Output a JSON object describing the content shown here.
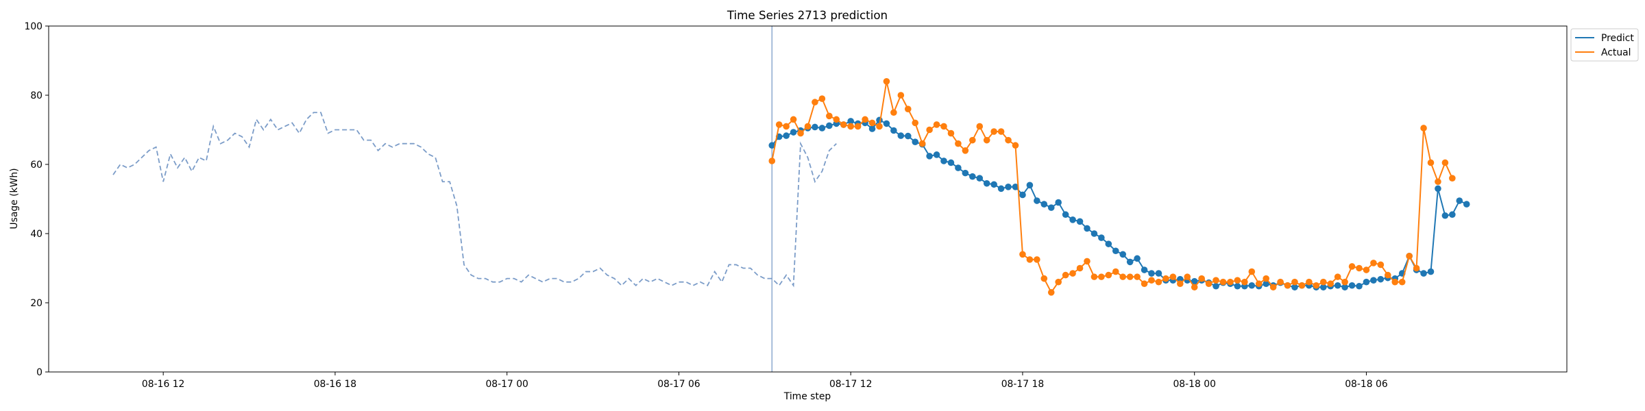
{
  "chart_data": {
    "type": "line",
    "title": "Time Series 2713 prediction",
    "xlabel": "Time step",
    "ylabel": "Usage (kWh)",
    "ylim": [
      0,
      100
    ],
    "yticks": [
      0,
      20,
      40,
      60,
      80,
      100
    ],
    "xlim": [
      "2024-08-16 08:00",
      "2024-08-18 13:00"
    ],
    "xticks": [
      {
        "t": "2024-08-16 12:00",
        "label": "08-16 12"
      },
      {
        "t": "2024-08-16 18:00",
        "label": "08-16 18"
      },
      {
        "t": "2024-08-17 00:00",
        "label": "08-17 00"
      },
      {
        "t": "2024-08-17 06:00",
        "label": "08-17 06"
      },
      {
        "t": "2024-08-17 12:00",
        "label": "08-17 12"
      },
      {
        "t": "2024-08-17 18:00",
        "label": "08-17 18"
      },
      {
        "t": "2024-08-18 00:00",
        "label": "08-18 00"
      },
      {
        "t": "2024-08-18 06:00",
        "label": "08-18 06"
      }
    ],
    "grid": false,
    "legend_position": "top-right (outside plot)",
    "forecast_start": "2024-08-17 09:15",
    "history": {
      "color": "#7b9cc8",
      "style": "dashed",
      "start": "2024-08-16 10:15",
      "step_minutes": 15,
      "values": [
        57,
        60,
        59,
        60,
        62,
        64,
        65,
        55,
        63,
        59,
        62,
        58,
        62,
        61,
        71,
        66,
        67,
        69,
        68,
        65,
        73,
        70,
        73,
        70,
        71,
        72,
        69,
        73,
        75,
        75,
        69,
        70,
        70,
        70,
        70,
        67,
        67,
        64,
        66,
        65,
        66,
        66,
        66,
        65,
        63,
        62,
        55,
        55,
        48,
        31,
        28,
        27,
        27,
        26,
        26,
        27,
        27,
        26,
        28,
        27,
        26,
        27,
        27,
        26,
        26,
        27,
        29,
        29,
        30,
        28,
        27,
        25,
        27,
        25,
        27,
        26,
        27,
        26,
        25,
        26,
        26,
        25,
        26,
        25,
        29,
        26,
        31,
        31,
        30,
        30,
        28,
        27,
        27,
        25,
        28,
        25,
        66,
        62,
        55,
        58,
        64,
        66
      ]
    },
    "series": [
      {
        "name": "Predict",
        "color": "#1f77b4",
        "start": "2024-08-17 09:15",
        "step_minutes": 15,
        "values": [
          65.5,
          68,
          68.3,
          69.3,
          69.8,
          70.5,
          70.8,
          70.5,
          71.2,
          71.8,
          71.5,
          72.5,
          71.8,
          72,
          70.3,
          72.8,
          71.8,
          69.8,
          68.3,
          68.2,
          66.5,
          65.8,
          62.4,
          62.8,
          61,
          60.5,
          59,
          57.5,
          56.5,
          56,
          54.5,
          54.2,
          53,
          53.5,
          53.5,
          51.2,
          54,
          49.5,
          48.5,
          47.5,
          49,
          45.5,
          44,
          43.5,
          41.5,
          40,
          38.8,
          37,
          35,
          34,
          31.8,
          32.8,
          29.5,
          28.5,
          28.5,
          26.5,
          26.5,
          26.8,
          26.5,
          26.2,
          26.5,
          25.8,
          24.8,
          25.8,
          25.5,
          24.8,
          24.8,
          25,
          24.8,
          25.5,
          25,
          25.8,
          25,
          24.5,
          25,
          25,
          24.5,
          24.5,
          24.8,
          25,
          24.5,
          25,
          24.8,
          26,
          26.5,
          26.8,
          27.2,
          27,
          28.5,
          33.5,
          29.5,
          28.5,
          29,
          53,
          45.2,
          45.5,
          49.5,
          48.5
        ]
      },
      {
        "name": "Actual",
        "color": "#ff7f0e",
        "start": "2024-08-17 09:15",
        "step_minutes": 15,
        "values": [
          61,
          71.5,
          71,
          73,
          69,
          71,
          78,
          79,
          74,
          73,
          71.5,
          71,
          71,
          73,
          72,
          71,
          84,
          75,
          80,
          76,
          72,
          66,
          70,
          71.5,
          71,
          69,
          66,
          64,
          67,
          71,
          67,
          69.5,
          69.5,
          67,
          65.5,
          34,
          32.5,
          32.5,
          27,
          23,
          26,
          28,
          28.5,
          30,
          32,
          27.5,
          27.5,
          28,
          29,
          27.5,
          27.5,
          27.5,
          25.5,
          26.5,
          26,
          27,
          27.5,
          25.5,
          27.5,
          24.5,
          27,
          25.5,
          26.5,
          26,
          26,
          26.5,
          26,
          29,
          25.5,
          27,
          24.5,
          26,
          25,
          26,
          25,
          26,
          25,
          26,
          25.5,
          27.5,
          26,
          30.5,
          30,
          29.5,
          31.5,
          31,
          28,
          26,
          26,
          33.5,
          30,
          70.5,
          60.5,
          55,
          60.5,
          56
        ]
      }
    ]
  }
}
